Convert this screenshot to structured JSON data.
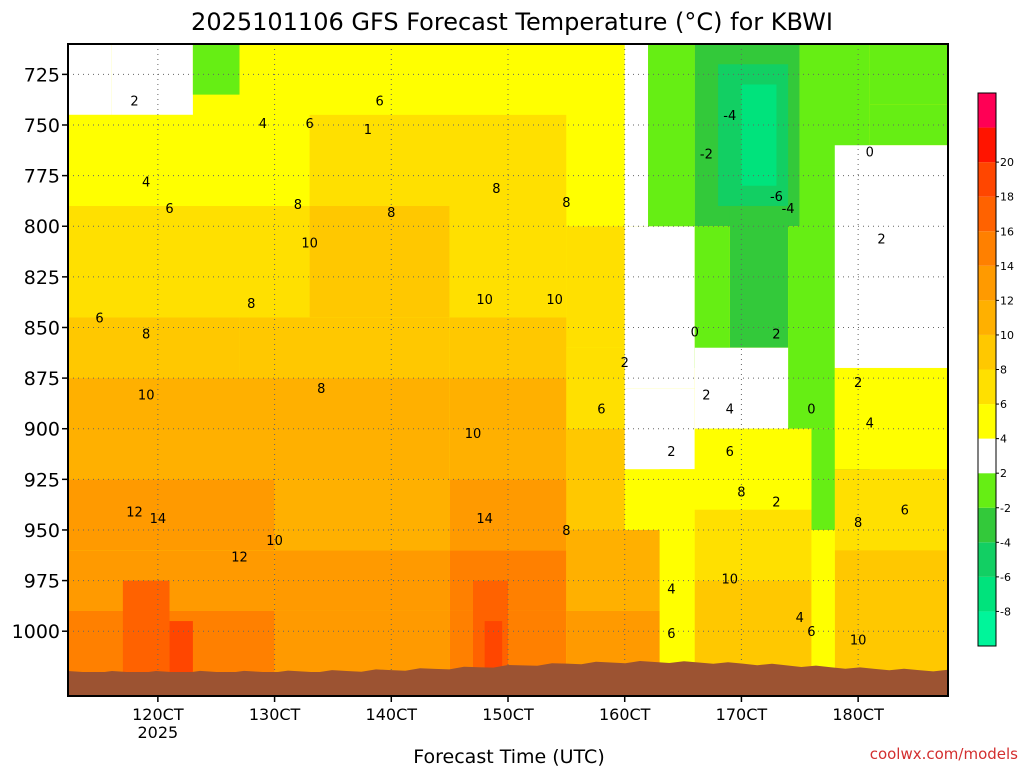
{
  "chart_data": {
    "type": "heatmap",
    "title": "2025101106 GFS Forecast Temperature (°C) for KBWI",
    "xlabel": "Forecast Time (UTC)",
    "ylabel": "",
    "x_ticks": [
      {
        "value": 120,
        "label": "120CT",
        "sub": "2025"
      },
      {
        "value": 130,
        "label": "130CT"
      },
      {
        "value": 140,
        "label": "140CT"
      },
      {
        "value": 150,
        "label": "150CT"
      },
      {
        "value": 160,
        "label": "160CT"
      },
      {
        "value": 170,
        "label": "170CT"
      },
      {
        "value": 180,
        "label": "180CT"
      }
    ],
    "xlim": [
      112.3,
      187.7
    ],
    "y_ticks": [
      725,
      750,
      775,
      800,
      825,
      850,
      875,
      900,
      925,
      950,
      975,
      1000
    ],
    "ylim": [
      1032,
      710
    ],
    "grid": "dotted",
    "colorbar": {
      "levels": [
        -10,
        -8,
        -6,
        -4,
        -2,
        2,
        4,
        6,
        8,
        10,
        12,
        14,
        16,
        18,
        20,
        22
      ],
      "labels": [
        -8,
        -6,
        -4,
        -2,
        2,
        4,
        6,
        8,
        10,
        12,
        14,
        16,
        18,
        20
      ],
      "colors": [
        "#00f59a",
        "#00e37c",
        "#12cf63",
        "#33c93a",
        "#66ee14",
        "#ffffff",
        "#ffff00",
        "#ffe000",
        "#ffc800",
        "#ffb000",
        "#ff9a00",
        "#ff8000",
        "#ff6200",
        "#ff4600",
        "#ff1400",
        "#ff0055"
      ]
    },
    "terrain_color": "#9c5332",
    "cells": [
      {
        "x": [
          112.3,
          116
        ],
        "p": [
          710,
          745
        ],
        "v": 2.5
      },
      {
        "x": [
          116,
          123
        ],
        "p": [
          710,
          745
        ],
        "v": 2.5
      },
      {
        "x": [
          123,
          127
        ],
        "p": [
          710,
          735
        ],
        "v": 1.0
      },
      {
        "x": [
          127,
          160
        ],
        "p": [
          710,
          745
        ],
        "v": 5.0
      },
      {
        "x": [
          112.3,
          127
        ],
        "p": [
          745,
          790
        ],
        "v": 4.0
      },
      {
        "x": [
          127,
          133
        ],
        "p": [
          745,
          790
        ],
        "v": 5.0
      },
      {
        "x": [
          133,
          155
        ],
        "p": [
          745,
          790
        ],
        "v": 6.5
      },
      {
        "x": [
          155,
          160
        ],
        "p": [
          745,
          800
        ],
        "v": 5.0
      },
      {
        "x": [
          112.3,
          133
        ],
        "p": [
          790,
          845
        ],
        "v": 6.0
      },
      {
        "x": [
          133,
          145
        ],
        "p": [
          790,
          845
        ],
        "v": 8.0
      },
      {
        "x": [
          145,
          155
        ],
        "p": [
          790,
          845
        ],
        "v": 7.0
      },
      {
        "x": [
          155,
          160
        ],
        "p": [
          800,
          860
        ],
        "v": 6.0
      },
      {
        "x": [
          112.3,
          127
        ],
        "p": [
          845,
          875
        ],
        "v": 8.0
      },
      {
        "x": [
          127,
          145
        ],
        "p": [
          845,
          875
        ],
        "v": 9.0
      },
      {
        "x": [
          145,
          155
        ],
        "p": [
          845,
          875
        ],
        "v": 8.0
      },
      {
        "x": [
          112.3,
          145
        ],
        "p": [
          875,
          925
        ],
        "v": 10.0
      },
      {
        "x": [
          145,
          155
        ],
        "p": [
          875,
          925
        ],
        "v": 10.0
      },
      {
        "x": [
          155,
          160
        ],
        "p": [
          860,
          900
        ],
        "v": 6.0
      },
      {
        "x": [
          155,
          160
        ],
        "p": [
          900,
          950
        ],
        "v": 8.0
      },
      {
        "x": [
          112.3,
          130
        ],
        "p": [
          925,
          960
        ],
        "v": 12.0
      },
      {
        "x": [
          130,
          145
        ],
        "p": [
          925,
          960
        ],
        "v": 11.0
      },
      {
        "x": [
          145,
          155
        ],
        "p": [
          925,
          960
        ],
        "v": 12.0
      },
      {
        "x": [
          112.3,
          130
        ],
        "p": [
          960,
          990
        ],
        "v": 13.0
      },
      {
        "x": [
          130,
          145
        ],
        "p": [
          960,
          990
        ],
        "v": 12.0
      },
      {
        "x": [
          145,
          155
        ],
        "p": [
          960,
          990
        ],
        "v": 14.0
      },
      {
        "x": [
          155,
          163
        ],
        "p": [
          950,
          990
        ],
        "v": 10.0
      },
      {
        "x": [
          112.3,
          130
        ],
        "p": [
          990,
          1032
        ],
        "v": 14.0
      },
      {
        "x": [
          130,
          145
        ],
        "p": [
          990,
          1032
        ],
        "v": 13.0
      },
      {
        "x": [
          145,
          155
        ],
        "p": [
          990,
          1032
        ],
        "v": 15.0
      },
      {
        "x": [
          155,
          163
        ],
        "p": [
          990,
          1032
        ],
        "v": 12.0
      },
      {
        "x": [
          117,
          121
        ],
        "p": [
          975,
          1032
        ],
        "v": 17.0
      },
      {
        "x": [
          121,
          123
        ],
        "p": [
          995,
          1032
        ],
        "v": 19.0
      },
      {
        "x": [
          147,
          150
        ],
        "p": [
          975,
          1032
        ],
        "v": 17.0
      },
      {
        "x": [
          148,
          149.5
        ],
        "p": [
          995,
          1032
        ],
        "v": 19.0
      },
      {
        "x": [
          160,
          162
        ],
        "p": [
          710,
          800
        ],
        "v": 3.0
      },
      {
        "x": [
          160,
          166
        ],
        "p": [
          800,
          880
        ],
        "v": 3.0
      },
      {
        "x": [
          162,
          166
        ],
        "p": [
          710,
          800
        ],
        "v": 0.0
      },
      {
        "x": [
          166,
          175
        ],
        "p": [
          710,
          800
        ],
        "v": -3.0
      },
      {
        "x": [
          168,
          174
        ],
        "p": [
          720,
          790
        ],
        "v": -5.0
      },
      {
        "x": [
          170,
          173
        ],
        "p": [
          730,
          780
        ],
        "v": -7.0
      },
      {
        "x": [
          169,
          174
        ],
        "p": [
          790,
          860
        ],
        "v": -3.0
      },
      {
        "x": [
          175,
          181
        ],
        "p": [
          710,
          770
        ],
        "v": -1.0
      },
      {
        "x": [
          181,
          187.7
        ],
        "p": [
          710,
          740
        ],
        "v": -1.0
      },
      {
        "x": [
          181,
          187.7
        ],
        "p": [
          740,
          760
        ],
        "v": 1.0
      },
      {
        "x": [
          175,
          181
        ],
        "p": [
          770,
          850
        ],
        "v": 1.0
      },
      {
        "x": [
          166,
          169
        ],
        "p": [
          800,
          870
        ],
        "v": 0.0
      },
      {
        "x": [
          174,
          178
        ],
        "p": [
          800,
          900
        ],
        "v": 0.0
      },
      {
        "x": [
          178,
          187.7
        ],
        "p": [
          760,
          870
        ],
        "v": 3.0
      },
      {
        "x": [
          176,
          181
        ],
        "p": [
          900,
          950
        ],
        "v": 1.0
      },
      {
        "x": [
          166,
          174
        ],
        "p": [
          860,
          900
        ],
        "v": 3.0
      },
      {
        "x": [
          160,
          166
        ],
        "p": [
          880,
          920
        ],
        "v": 3.0
      },
      {
        "x": [
          178,
          187.7
        ],
        "p": [
          870,
          920
        ],
        "v": 4.5
      },
      {
        "x": [
          166,
          176
        ],
        "p": [
          900,
          940
        ],
        "v": 5.0
      },
      {
        "x": [
          163,
          166
        ],
        "p": [
          920,
          1032
        ],
        "v": 4.0
      },
      {
        "x": [
          166,
          176
        ],
        "p": [
          940,
          975
        ],
        "v": 7.0
      },
      {
        "x": [
          178,
          187.7
        ],
        "p": [
          920,
          960
        ],
        "v": 6.0
      },
      {
        "x": [
          178,
          187.7
        ],
        "p": [
          960,
          1032
        ],
        "v": 8.0
      },
      {
        "x": [
          166,
          176
        ],
        "p": [
          975,
          1032
        ],
        "v": 9.0
      },
      {
        "x": [
          176,
          178
        ],
        "p": [
          950,
          1032
        ],
        "v": 5.0
      }
    ],
    "contour_labels": [
      {
        "x": 118,
        "p": 738,
        "t": "2"
      },
      {
        "x": 119,
        "p": 778,
        "t": "4"
      },
      {
        "x": 129,
        "p": 749,
        "t": "4"
      },
      {
        "x": 133,
        "p": 749,
        "t": "6"
      },
      {
        "x": 139,
        "p": 738,
        "t": "6"
      },
      {
        "x": 138,
        "p": 752,
        "t": "1"
      },
      {
        "x": 121,
        "p": 791,
        "t": "6"
      },
      {
        "x": 115,
        "p": 845,
        "t": "6"
      },
      {
        "x": 119,
        "p": 853,
        "t": "8"
      },
      {
        "x": 128,
        "p": 838,
        "t": "8"
      },
      {
        "x": 132,
        "p": 789,
        "t": "8"
      },
      {
        "x": 133,
        "p": 808,
        "t": "10"
      },
      {
        "x": 140,
        "p": 793,
        "t": "8"
      },
      {
        "x": 149,
        "p": 781,
        "t": "8"
      },
      {
        "x": 155,
        "p": 788,
        "t": "8"
      },
      {
        "x": 148,
        "p": 836,
        "t": "10"
      },
      {
        "x": 154,
        "p": 836,
        "t": "10"
      },
      {
        "x": 134,
        "p": 880,
        "t": "8"
      },
      {
        "x": 119,
        "p": 883,
        "t": "10"
      },
      {
        "x": 147,
        "p": 902,
        "t": "10"
      },
      {
        "x": 160,
        "p": 867,
        "t": "2"
      },
      {
        "x": 158,
        "p": 890,
        "t": "6"
      },
      {
        "x": 164,
        "p": 911,
        "t": "2"
      },
      {
        "x": 167,
        "p": 883,
        "t": "2"
      },
      {
        "x": 169,
        "p": 890,
        "t": "4"
      },
      {
        "x": 169,
        "p": 911,
        "t": "6"
      },
      {
        "x": 170,
        "p": 931,
        "t": "8"
      },
      {
        "x": 173,
        "p": 936,
        "t": "2"
      },
      {
        "x": 176,
        "p": 890,
        "t": "0"
      },
      {
        "x": 166,
        "p": 852,
        "t": "0"
      },
      {
        "x": 173,
        "p": 853,
        "t": "2"
      },
      {
        "x": 180,
        "p": 877,
        "t": "2"
      },
      {
        "x": 181,
        "p": 897,
        "t": "4"
      },
      {
        "x": 182,
        "p": 806,
        "t": "2"
      },
      {
        "x": 181,
        "p": 763,
        "t": "0"
      },
      {
        "x": 184,
        "p": 940,
        "t": "6"
      },
      {
        "x": 180,
        "p": 946,
        "t": "8"
      },
      {
        "x": 169,
        "p": 745,
        "t": "-4"
      },
      {
        "x": 167,
        "p": 764,
        "t": "-2"
      },
      {
        "x": 173,
        "p": 785,
        "t": "-6"
      },
      {
        "x": 174,
        "p": 791,
        "t": "-4"
      },
      {
        "x": 169,
        "p": 974,
        "t": "10"
      },
      {
        "x": 164,
        "p": 979,
        "t": "4"
      },
      {
        "x": 164,
        "p": 1001,
        "t": "6"
      },
      {
        "x": 175,
        "p": 993,
        "t": "4"
      },
      {
        "x": 176,
        "p": 1000,
        "t": "6"
      },
      {
        "x": 180,
        "p": 1004,
        "t": "10"
      },
      {
        "x": 118,
        "p": 941,
        "t": "12"
      },
      {
        "x": 120,
        "p": 944,
        "t": "14"
      },
      {
        "x": 127,
        "p": 963,
        "t": "12"
      },
      {
        "x": 130,
        "p": 955,
        "t": "10"
      },
      {
        "x": 148,
        "p": 944,
        "t": "14"
      },
      {
        "x": 155,
        "p": 950,
        "t": "8"
      }
    ]
  },
  "footer": {
    "credit": "coolwx.com/models"
  }
}
